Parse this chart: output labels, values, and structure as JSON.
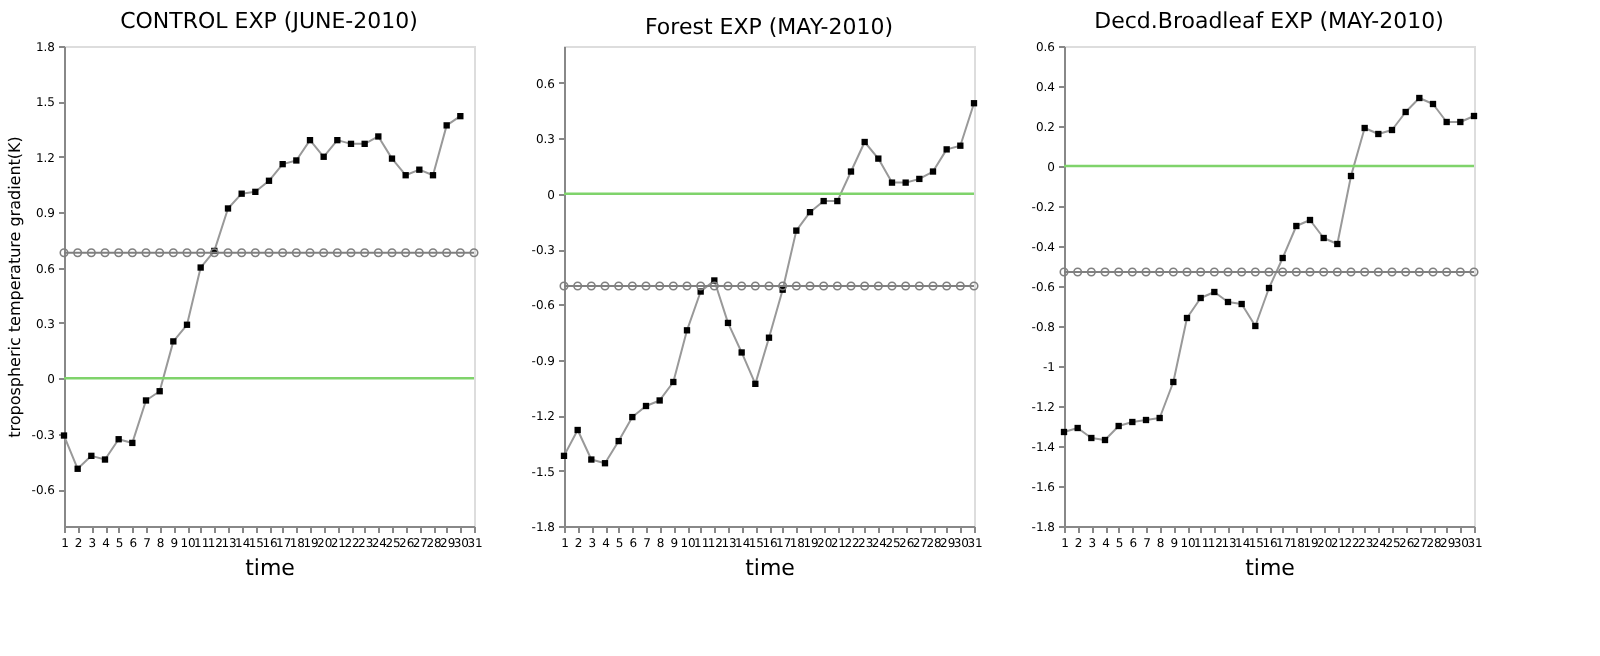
{
  "chart_data": [
    {
      "type": "line",
      "title": "CONTROL EXP (JUNE-2010)",
      "xlabel": "time",
      "ylabel": "tropospheric temperature gradient(K)",
      "xlim": [
        1,
        31
      ],
      "xticks": [
        1,
        2,
        3,
        4,
        5,
        6,
        7,
        8,
        9,
        10,
        11,
        12,
        13,
        14,
        15,
        16,
        17,
        18,
        19,
        20,
        21,
        22,
        23,
        24,
        25,
        26,
        27,
        28,
        29,
        30,
        31
      ],
      "ylim": [
        -0.8,
        1.8
      ],
      "yticks": [
        -0.6,
        -0.3,
        0,
        0.3,
        0.6,
        0.9,
        1.2,
        1.5,
        1.8
      ],
      "grid": false,
      "series": [
        {
          "color": "#000000",
          "marker": "square",
          "x": [
            1,
            2,
            3,
            4,
            5,
            6,
            7,
            8,
            9,
            10,
            11,
            12,
            13,
            14,
            15,
            16,
            17,
            18,
            19,
            20,
            21,
            22,
            23,
            24,
            25,
            26,
            27,
            28,
            29,
            30
          ],
          "values": [
            -0.31,
            -0.49,
            -0.42,
            -0.44,
            -0.33,
            -0.35,
            -0.12,
            -0.07,
            0.2,
            0.29,
            0.6,
            0.69,
            0.92,
            1.0,
            1.01,
            1.07,
            1.16,
            1.18,
            1.29,
            1.2,
            1.29,
            1.27,
            1.27,
            1.31,
            1.19,
            1.1,
            1.13,
            1.1,
            1.37,
            1.42
          ]
        },
        {
          "color": "#808080",
          "marker": "circle",
          "x": [
            1,
            2,
            3,
            4,
            5,
            6,
            7,
            8,
            9,
            10,
            11,
            12,
            13,
            14,
            15,
            16,
            17,
            18,
            19,
            20,
            21,
            22,
            23,
            24,
            25,
            26,
            27,
            28,
            29,
            30,
            31
          ],
          "values": [
            0.68,
            0.68,
            0.68,
            0.68,
            0.68,
            0.68,
            0.68,
            0.68,
            0.68,
            0.68,
            0.68,
            0.68,
            0.68,
            0.68,
            0.68,
            0.68,
            0.68,
            0.68,
            0.68,
            0.68,
            0.68,
            0.68,
            0.68,
            0.68,
            0.68,
            0.68,
            0.68,
            0.68,
            0.68,
            0.68,
            0.68
          ]
        }
      ],
      "ref_lines": [
        {
          "axis": "y",
          "value": 0,
          "color": "#7fd36b"
        }
      ]
    },
    {
      "type": "line",
      "title": "Forest EXP (MAY-2010)",
      "xlabel": "time",
      "xlim": [
        1,
        31
      ],
      "xticks": [
        1,
        2,
        3,
        4,
        5,
        6,
        7,
        8,
        9,
        10,
        11,
        12,
        13,
        14,
        15,
        16,
        17,
        18,
        19,
        20,
        21,
        22,
        23,
        24,
        25,
        26,
        27,
        28,
        29,
        30,
        31
      ],
      "ylim": [
        -1.8,
        0.8
      ],
      "yticks": [
        -1.8,
        -1.5,
        -1.2,
        -0.9,
        -0.6,
        -0.3,
        0,
        0.3,
        0.6
      ],
      "grid": false,
      "series": [
        {
          "color": "#000000",
          "marker": "square",
          "x": [
            1,
            2,
            3,
            4,
            5,
            6,
            7,
            8,
            9,
            10,
            11,
            12,
            13,
            14,
            15,
            16,
            17,
            18,
            19,
            20,
            21,
            22,
            23,
            24,
            25,
            26,
            27,
            28,
            29,
            30,
            31
          ],
          "values": [
            -1.42,
            -1.28,
            -1.44,
            -1.46,
            -1.34,
            -1.21,
            -1.15,
            -1.12,
            -1.02,
            -0.74,
            -0.53,
            -0.47,
            -0.7,
            -0.86,
            -1.03,
            -0.78,
            -0.52,
            -0.2,
            -0.1,
            -0.04,
            -0.04,
            0.12,
            0.28,
            0.19,
            0.06,
            0.06,
            0.08,
            0.12,
            0.24,
            0.26,
            0.49
          ]
        },
        {
          "color": "#808080",
          "marker": "circle",
          "x": [
            1,
            2,
            3,
            4,
            5,
            6,
            7,
            8,
            9,
            10,
            11,
            12,
            13,
            14,
            15,
            16,
            17,
            18,
            19,
            20,
            21,
            22,
            23,
            24,
            25,
            26,
            27,
            28,
            29,
            30,
            31
          ],
          "values": [
            -0.5,
            -0.5,
            -0.5,
            -0.5,
            -0.5,
            -0.5,
            -0.5,
            -0.5,
            -0.5,
            -0.5,
            -0.5,
            -0.5,
            -0.5,
            -0.5,
            -0.5,
            -0.5,
            -0.5,
            -0.5,
            -0.5,
            -0.5,
            -0.5,
            -0.5,
            -0.5,
            -0.5,
            -0.5,
            -0.5,
            -0.5,
            -0.5,
            -0.5,
            -0.5,
            -0.5
          ]
        }
      ],
      "ref_lines": [
        {
          "axis": "y",
          "value": 0,
          "color": "#7fd36b"
        }
      ]
    },
    {
      "type": "line",
      "title": "Decd.Broadleaf EXP (MAY-2010)",
      "xlabel": "time",
      "xlim": [
        1,
        31
      ],
      "xticks": [
        1,
        2,
        3,
        4,
        5,
        6,
        7,
        8,
        9,
        10,
        11,
        12,
        13,
        14,
        15,
        16,
        17,
        18,
        19,
        20,
        21,
        22,
        23,
        24,
        25,
        26,
        27,
        28,
        29,
        30,
        31
      ],
      "ylim": [
        -1.8,
        0.6
      ],
      "yticks": [
        -1.8,
        -1.6,
        -1.4,
        -1.2,
        -1,
        -0.8,
        -0.6,
        -0.4,
        -0.2,
        0,
        0.2,
        0.4,
        0.6
      ],
      "grid": false,
      "series": [
        {
          "color": "#000000",
          "marker": "square",
          "x": [
            1,
            2,
            3,
            4,
            5,
            6,
            7,
            8,
            9,
            10,
            11,
            12,
            13,
            14,
            15,
            16,
            17,
            18,
            19,
            20,
            21,
            22,
            23,
            24,
            25,
            26,
            27,
            28,
            29,
            30,
            31
          ],
          "values": [
            -1.33,
            -1.31,
            -1.36,
            -1.37,
            -1.3,
            -1.28,
            -1.27,
            -1.26,
            -1.08,
            -0.76,
            -0.66,
            -0.63,
            -0.68,
            -0.69,
            -0.8,
            -0.61,
            -0.46,
            -0.3,
            -0.27,
            -0.36,
            -0.39,
            -0.05,
            0.19,
            0.16,
            0.18,
            0.27,
            0.34,
            0.31,
            0.22,
            0.22,
            0.25
          ]
        },
        {
          "color": "#808080",
          "marker": "circle",
          "x": [
            1,
            2,
            3,
            4,
            5,
            6,
            7,
            8,
            9,
            10,
            11,
            12,
            13,
            14,
            15,
            16,
            17,
            18,
            19,
            20,
            21,
            22,
            23,
            24,
            25,
            26,
            27,
            28,
            29,
            30,
            31
          ],
          "values": [
            -0.53,
            -0.53,
            -0.53,
            -0.53,
            -0.53,
            -0.53,
            -0.53,
            -0.53,
            -0.53,
            -0.53,
            -0.53,
            -0.53,
            -0.53,
            -0.53,
            -0.53,
            -0.53,
            -0.53,
            -0.53,
            -0.53,
            -0.53,
            -0.53,
            -0.53,
            -0.53,
            -0.53,
            -0.53,
            -0.53,
            -0.53,
            -0.53,
            -0.53,
            -0.53,
            -0.53
          ]
        }
      ],
      "ref_lines": [
        {
          "axis": "y",
          "value": 0,
          "color": "#7fd36b"
        }
      ]
    }
  ]
}
